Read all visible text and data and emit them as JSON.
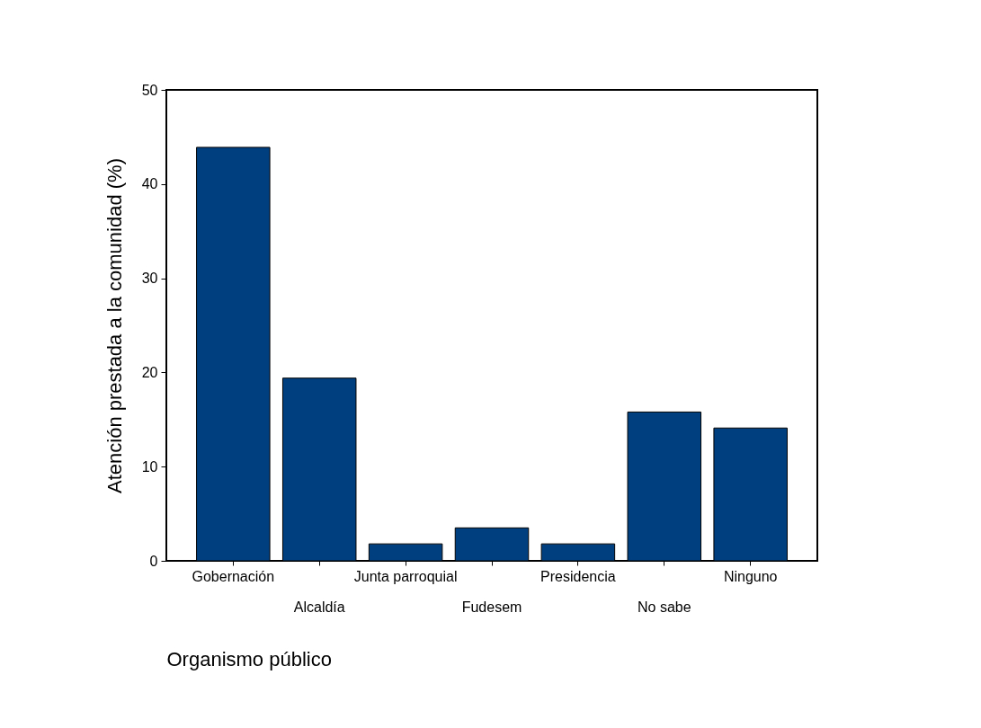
{
  "chart_data": {
    "type": "bar",
    "xlabel": "Organismo público",
    "ylabel": "Atención prestada a la comunidad (%)",
    "categories": [
      "Gobernación",
      "Alcaldía",
      "Junta parroquial",
      "Fudesem",
      "Presidencia",
      "No sabe",
      "Ninguno"
    ],
    "values": [
      43.9,
      19.4,
      1.8,
      3.5,
      1.8,
      15.8,
      14.1
    ],
    "color": "#003f7f",
    "ylim": [
      0,
      50
    ],
    "yticks": [
      0,
      10,
      20,
      30,
      40,
      50
    ]
  }
}
